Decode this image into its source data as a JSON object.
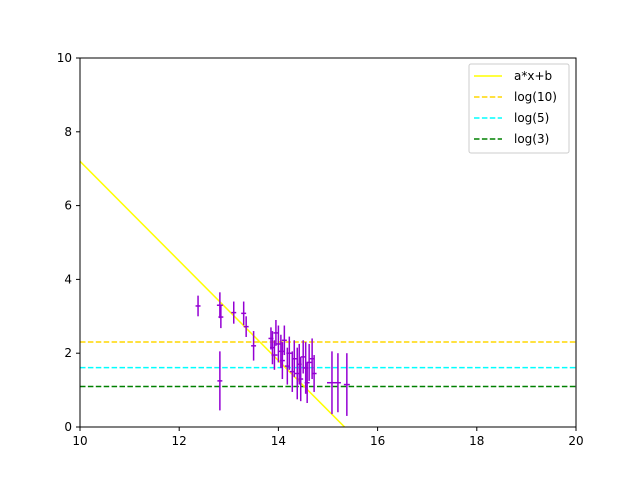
{
  "chart_data": {
    "type": "scatter",
    "title": "",
    "xlabel": "",
    "ylabel": "",
    "xlim": [
      10,
      20
    ],
    "ylim": [
      0,
      10
    ],
    "x_ticks": [
      10,
      12,
      14,
      16,
      18,
      20
    ],
    "y_ticks": [
      0,
      2,
      4,
      6,
      8,
      10
    ],
    "grid": false,
    "legend_position": "top-right",
    "fit_line": {
      "label": "a*x+b",
      "color": "#ffff00",
      "style": "solid",
      "slope": -1.35,
      "intercept": 20.7,
      "x_range": [
        10,
        15.33
      ]
    },
    "hlines": [
      {
        "label": "log(10)",
        "y": 2.303,
        "color": "#ffd700",
        "style": "dashed"
      },
      {
        "label": "log(5)",
        "y": 1.609,
        "color": "#00ffff",
        "style": "dashed"
      },
      {
        "label": "log(3)",
        "y": 1.099,
        "color": "#008000",
        "style": "dashed"
      }
    ],
    "points_color": "#9400d3",
    "points": [
      {
        "x": 12.38,
        "y": 3.28,
        "xerr": 0.05,
        "yerr": 0.28
      },
      {
        "x": 12.82,
        "y": 3.3,
        "xerr": 0.06,
        "yerr": 0.35
      },
      {
        "x": 12.84,
        "y": 2.98,
        "xerr": 0.05,
        "yerr": 0.3
      },
      {
        "x": 12.82,
        "y": 1.25,
        "xerr": 0.05,
        "yerr": 0.8
      },
      {
        "x": 13.1,
        "y": 3.1,
        "xerr": 0.05,
        "yerr": 0.3
      },
      {
        "x": 13.3,
        "y": 3.08,
        "xerr": 0.05,
        "yerr": 0.32
      },
      {
        "x": 13.35,
        "y": 2.72,
        "xerr": 0.05,
        "yerr": 0.28
      },
      {
        "x": 13.5,
        "y": 2.2,
        "xerr": 0.05,
        "yerr": 0.4
      },
      {
        "x": 13.85,
        "y": 2.4,
        "xerr": 0.05,
        "yerr": 0.3
      },
      {
        "x": 13.88,
        "y": 2.15,
        "xerr": 0.05,
        "yerr": 0.45
      },
      {
        "x": 13.92,
        "y": 1.95,
        "xerr": 0.06,
        "yerr": 0.4
      },
      {
        "x": 13.95,
        "y": 2.55,
        "xerr": 0.05,
        "yerr": 0.35
      },
      {
        "x": 14.0,
        "y": 2.25,
        "xerr": 0.05,
        "yerr": 0.5
      },
      {
        "x": 14.05,
        "y": 2.05,
        "xerr": 0.06,
        "yerr": 0.45
      },
      {
        "x": 14.08,
        "y": 1.8,
        "xerr": 0.05,
        "yerr": 0.5
      },
      {
        "x": 14.12,
        "y": 2.35,
        "xerr": 0.05,
        "yerr": 0.4
      },
      {
        "x": 14.18,
        "y": 1.65,
        "xerr": 0.05,
        "yerr": 0.5
      },
      {
        "x": 14.22,
        "y": 2.0,
        "xerr": 0.06,
        "yerr": 0.45
      },
      {
        "x": 14.28,
        "y": 1.5,
        "xerr": 0.05,
        "yerr": 0.55
      },
      {
        "x": 14.32,
        "y": 1.85,
        "xerr": 0.05,
        "yerr": 0.5
      },
      {
        "x": 14.38,
        "y": 1.45,
        "xerr": 0.05,
        "yerr": 0.7
      },
      {
        "x": 14.42,
        "y": 1.7,
        "xerr": 0.05,
        "yerr": 0.55
      },
      {
        "x": 14.45,
        "y": 1.3,
        "xerr": 0.05,
        "yerr": 0.6
      },
      {
        "x": 14.5,
        "y": 1.9,
        "xerr": 0.05,
        "yerr": 0.45
      },
      {
        "x": 14.55,
        "y": 1.6,
        "xerr": 0.05,
        "yerr": 0.7
      },
      {
        "x": 14.58,
        "y": 1.2,
        "xerr": 0.05,
        "yerr": 0.55
      },
      {
        "x": 14.62,
        "y": 1.75,
        "xerr": 0.05,
        "yerr": 0.5
      },
      {
        "x": 14.68,
        "y": 1.85,
        "xerr": 0.05,
        "yerr": 0.55
      },
      {
        "x": 14.72,
        "y": 1.45,
        "xerr": 0.05,
        "yerr": 0.5
      },
      {
        "x": 15.08,
        "y": 1.2,
        "xerr": 0.1,
        "yerr": 0.85
      },
      {
        "x": 15.2,
        "y": 1.2,
        "xerr": 0.06,
        "yerr": 0.8
      },
      {
        "x": 15.38,
        "y": 1.15,
        "xerr": 0.06,
        "yerr": 0.85
      }
    ]
  }
}
